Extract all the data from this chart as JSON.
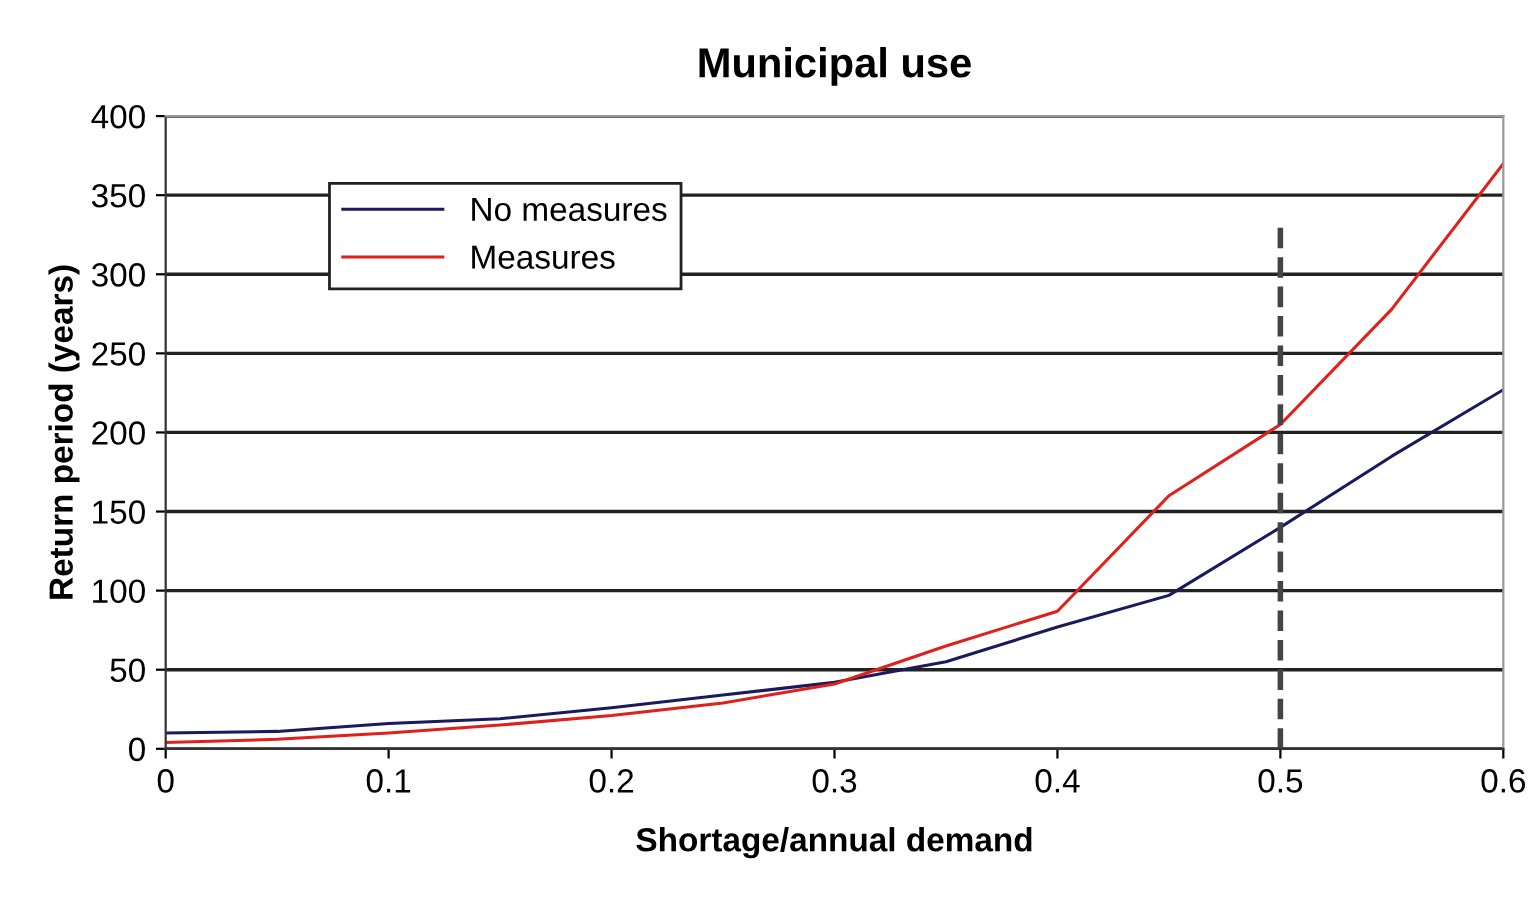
{
  "chart_data": {
    "type": "line",
    "title": "Municipal use",
    "xlabel": "Shortage/annual demand",
    "ylabel": "Return period (years)",
    "x": [
      0,
      0.05,
      0.1,
      0.15,
      0.2,
      0.25,
      0.3,
      0.35,
      0.4,
      0.45,
      0.5,
      0.55,
      0.6
    ],
    "series": [
      {
        "name": "No measures",
        "color": "#1a1a5c",
        "values": [
          10,
          11,
          16,
          19,
          26,
          34,
          42,
          55,
          77,
          97,
          140,
          185,
          227
        ]
      },
      {
        "name": "Measures",
        "color": "#e0201b",
        "values": [
          4,
          6,
          10,
          15,
          21,
          29,
          41,
          65,
          87,
          160,
          205,
          278,
          370
        ]
      }
    ],
    "xlim": [
      0,
      0.6
    ],
    "xticks": [
      0,
      0.1,
      0.2,
      0.3,
      0.4,
      0.5,
      0.6
    ],
    "ylim": [
      0,
      400
    ],
    "yticks": [
      0,
      50,
      100,
      150,
      200,
      250,
      300,
      350,
      400
    ],
    "grid": "y",
    "legend": "top left",
    "marker": "none",
    "line_style": "solid",
    "ref_lines": [
      {
        "axis": "x",
        "value": 0.5,
        "color": "#444444",
        "line_style": "dashed"
      }
    ]
  }
}
